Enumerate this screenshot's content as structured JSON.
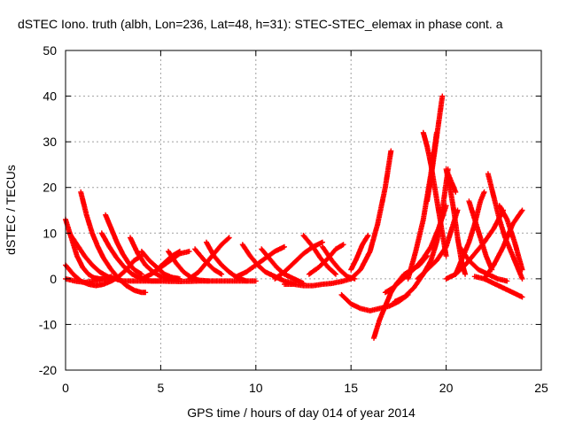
{
  "chart_data": {
    "type": "scatter",
    "title": "dSTEC Iono. truth (albh, Lon=236, Lat=48, h=31): STEC-STEC_elemax in phase cont. a",
    "xlabel": "GPS time / hours of day 014 of year 2014",
    "ylabel": "dSTEC  / TECUs",
    "xlim": [
      0,
      25
    ],
    "ylim": [
      -20,
      50
    ],
    "xticks": [
      0,
      5,
      10,
      15,
      20,
      25
    ],
    "yticks": [
      -20,
      -10,
      0,
      10,
      20,
      30,
      40,
      50
    ],
    "grid": true,
    "marker": "+",
    "color": "#ff0000",
    "series": [
      {
        "x": [
          0.0,
          0.3,
          0.6,
          0.9,
          1.2,
          1.5,
          1.8,
          2.2
        ],
        "y": [
          13,
          9,
          5,
          2.5,
          1,
          0.2,
          0,
          0
        ]
      },
      {
        "x": [
          0.0,
          0.4,
          0.8,
          1.2,
          1.6,
          2.0,
          2.4,
          2.8,
          3.2,
          3.6,
          4.0
        ],
        "y": [
          3,
          1,
          -0.5,
          -1.2,
          -1.5,
          -1.2,
          -0.5,
          0.5,
          2,
          4,
          5
        ]
      },
      {
        "x": [
          0.0,
          0.5,
          1.0,
          1.5,
          2.0,
          2.4
        ],
        "y": [
          0,
          -0.5,
          -0.8,
          -0.5,
          0,
          0.5
        ]
      },
      {
        "x": [
          0.8,
          1.1,
          1.4,
          1.7,
          2.0,
          2.4,
          2.8,
          3.2,
          3.6,
          4.0,
          4.2
        ],
        "y": [
          19,
          14,
          10,
          7,
          4.5,
          2,
          0,
          -1.5,
          -2.5,
          -3,
          -3
        ]
      },
      {
        "x": [
          0.2,
          0.6,
          1.0,
          1.4,
          1.8,
          2.2,
          2.6,
          3.0
        ],
        "y": [
          10,
          7.5,
          5,
          3,
          1.5,
          0.5,
          0,
          -0.5
        ]
      },
      {
        "x": [
          2.1,
          2.4,
          2.7,
          3.0,
          3.3,
          3.6,
          4.0
        ],
        "y": [
          14,
          11,
          8,
          5.5,
          3.5,
          2,
          1
        ]
      },
      {
        "x": [
          1.9,
          2.3,
          2.7,
          3.1,
          3.5,
          4.0,
          4.5,
          5.0
        ],
        "y": [
          10,
          7,
          4.5,
          2.5,
          1,
          0,
          -0.5,
          -0.5
        ]
      },
      {
        "x": [
          3.4,
          3.8,
          4.2,
          4.6,
          5.0,
          5.4,
          5.8
        ],
        "y": [
          9,
          5.5,
          3,
          1.5,
          0.5,
          0,
          0
        ]
      },
      {
        "x": [
          4.0,
          4.4,
          4.8,
          5.2,
          5.6,
          6.0
        ],
        "y": [
          6,
          4,
          2.5,
          1,
          0.3,
          0
        ]
      },
      {
        "x": [
          3.0,
          4.0,
          5.0,
          6.0,
          7.0,
          8.0,
          9.0,
          10.0
        ],
        "y": [
          -0.5,
          -0.5,
          -0.5,
          -0.6,
          -0.5,
          -0.5,
          -0.5,
          -0.5
        ]
      },
      {
        "x": [
          4.0,
          4.5,
          5.0,
          5.5,
          6.0,
          6.5
        ],
        "y": [
          0,
          1,
          2.5,
          4,
          5.5,
          6
        ]
      },
      {
        "x": [
          4.8,
          5.2,
          5.6,
          6.0
        ],
        "y": [
          2,
          3.5,
          5,
          6
        ]
      },
      {
        "x": [
          5.4,
          5.8,
          6.2,
          6.6,
          7.0,
          7.5
        ],
        "y": [
          6,
          3.5,
          1.5,
          0.3,
          -0.3,
          -0.5
        ]
      },
      {
        "x": [
          6.5,
          7.0,
          7.4,
          7.8,
          8.2,
          8.6
        ],
        "y": [
          0,
          1.5,
          3.5,
          5.5,
          7.5,
          9
        ]
      },
      {
        "x": [
          7.4,
          7.8,
          8.2,
          8.6,
          9.0,
          9.5
        ],
        "y": [
          8,
          5,
          3,
          1.5,
          0.3,
          -0.5
        ]
      },
      {
        "x": [
          6.8,
          7.3,
          7.8,
          8.2
        ],
        "y": [
          6.5,
          4,
          2,
          1
        ]
      },
      {
        "x": [
          9.0,
          9.5,
          10.0,
          10.5,
          11.0,
          11.5
        ],
        "y": [
          0.5,
          1.5,
          3,
          4.5,
          6,
          7
        ]
      },
      {
        "x": [
          9.3,
          9.7,
          10.1,
          10.5,
          11.0,
          11.5,
          12.0
        ],
        "y": [
          7.5,
          5,
          3,
          1.5,
          0.5,
          -0.5,
          -1
        ]
      },
      {
        "x": [
          10.3,
          10.7,
          11.1,
          11.5,
          12.0,
          12.5
        ],
        "y": [
          6.5,
          4.5,
          2.5,
          1,
          0,
          -1
        ]
      },
      {
        "x": [
          11.0,
          11.5,
          12.0,
          12.5,
          13.0,
          13.5
        ],
        "y": [
          0,
          1.5,
          3.5,
          5.5,
          7,
          8
        ]
      },
      {
        "x": [
          12.5,
          13.0,
          13.4,
          13.8,
          14.2
        ],
        "y": [
          9.5,
          7,
          4.5,
          2.5,
          1
        ]
      },
      {
        "x": [
          11.5,
          12.0,
          12.5,
          13.0,
          13.5,
          14.0,
          14.5,
          15.0
        ],
        "y": [
          -1.2,
          -1.2,
          -1.5,
          -1.5,
          -1.2,
          -1,
          -0.6,
          0
        ]
      },
      {
        "x": [
          12.8,
          13.3,
          13.8,
          14.2,
          14.6
        ],
        "y": [
          1,
          2.5,
          4.5,
          6.5,
          7.5
        ]
      },
      {
        "x": [
          13.5,
          14.0,
          14.4,
          14.8,
          15.2
        ],
        "y": [
          7,
          4,
          2,
          0.5,
          0
        ]
      },
      {
        "x": [
          15.0,
          15.3,
          15.6,
          15.9
        ],
        "y": [
          2,
          4.5,
          7.5,
          9.5
        ]
      },
      {
        "x": [
          14.5,
          15.0,
          15.5,
          16.0,
          16.5,
          17.0,
          17.5,
          18.0
        ],
        "y": [
          -3.5,
          -5.5,
          -6.5,
          -7,
          -6.5,
          -6,
          -5,
          -3.5
        ]
      },
      {
        "x": [
          15.0,
          15.5,
          16.0,
          16.4,
          16.8,
          17.1
        ],
        "y": [
          0,
          2,
          6,
          12,
          20,
          28
        ]
      },
      {
        "x": [
          16.2,
          16.5,
          16.8,
          17.1,
          17.4,
          17.8,
          18.2,
          18.6,
          19.0
        ],
        "y": [
          -13,
          -9,
          -6,
          -3,
          -1,
          1,
          2,
          3,
          5
        ]
      },
      {
        "x": [
          16.8,
          17.2,
          17.6,
          18.0,
          18.4,
          18.8,
          19.2,
          19.6,
          20.0
        ],
        "y": [
          -3,
          -2,
          -0.5,
          1,
          2.5,
          4.5,
          7,
          11,
          16
        ]
      },
      {
        "x": [
          17.3,
          17.8,
          18.3,
          18.8,
          19.2,
          19.5,
          19.7,
          19.9,
          20.1
        ],
        "y": [
          -5,
          -4,
          -2,
          1,
          4,
          8,
          12,
          18,
          24
        ]
      },
      {
        "x": [
          18.0,
          18.4,
          18.8,
          19.2,
          19.5
        ],
        "y": [
          0,
          6,
          13,
          23,
          32
        ]
      },
      {
        "x": [
          18.8,
          19.0,
          19.2,
          19.4,
          19.6,
          19.8,
          20.0
        ],
        "y": [
          32,
          29,
          25,
          20,
          15,
          10,
          5
        ]
      },
      {
        "x": [
          19.0,
          19.2,
          19.4,
          19.6,
          19.8
        ],
        "y": [
          17,
          22,
          28,
          34,
          40
        ]
      },
      {
        "x": [
          18.5,
          19.0,
          19.5,
          20.0,
          20.3,
          20.6
        ],
        "y": [
          0,
          2,
          4,
          7,
          11,
          15
        ]
      },
      {
        "x": [
          20.0,
          20.2,
          20.4,
          20.6,
          20.8,
          21.0
        ],
        "y": [
          24,
          20,
          15,
          9,
          4,
          1
        ]
      },
      {
        "x": [
          20.1,
          20.3,
          20.5
        ],
        "y": [
          23,
          21,
          19
        ]
      },
      {
        "x": [
          20.5,
          20.8,
          21.2,
          21.5,
          21.8,
          22.0
        ],
        "y": [
          1,
          4,
          8,
          12,
          17,
          19
        ]
      },
      {
        "x": [
          20.7,
          21.2,
          21.7,
          22.2,
          22.7,
          23.2
        ],
        "y": [
          7,
          4,
          2,
          1,
          0,
          -0.5
        ]
      },
      {
        "x": [
          21.2,
          21.5,
          21.8,
          22.1,
          22.4
        ],
        "y": [
          17,
          13,
          9,
          5,
          2
        ]
      },
      {
        "x": [
          22.2,
          22.5,
          22.8,
          23.1,
          23.5,
          23.8,
          24.0
        ],
        "y": [
          23,
          18,
          13,
          9,
          5,
          2,
          0
        ]
      },
      {
        "x": [
          22.0,
          22.5,
          23.0,
          23.5,
          24.0
        ],
        "y": [
          0,
          3,
          7,
          12,
          15
        ]
      },
      {
        "x": [
          22.8,
          23.2,
          23.6,
          24.0
        ],
        "y": [
          16,
          13,
          8,
          2
        ]
      },
      {
        "x": [
          21.5,
          22.0,
          22.5,
          23.0,
          23.5,
          24.0
        ],
        "y": [
          0.5,
          0,
          -1,
          -2,
          -3,
          -4
        ]
      },
      {
        "x": [
          20.0,
          20.5,
          21.0,
          21.5,
          22.0,
          22.5,
          23.0
        ],
        "y": [
          0,
          1,
          3,
          5.5,
          8,
          11,
          15
        ]
      }
    ]
  }
}
